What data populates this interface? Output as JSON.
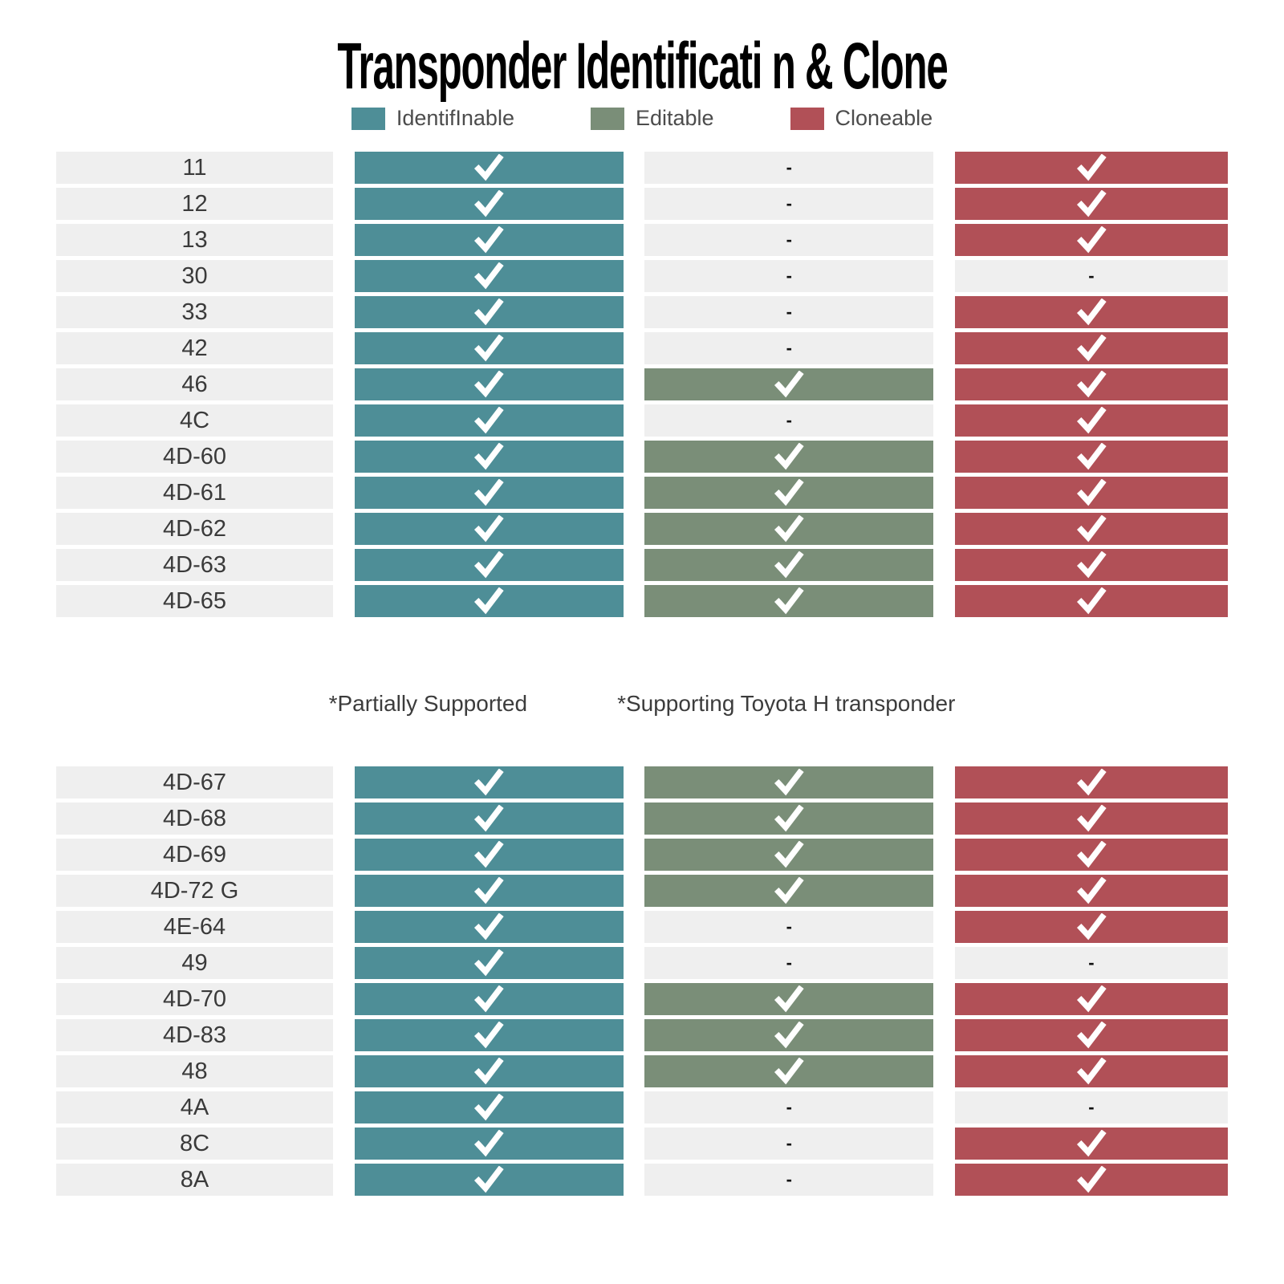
{
  "chart_data": {
    "type": "table",
    "title": "Transponder Identificati n & Clone",
    "legend": [
      {
        "key": "identifinable",
        "label": "IdentifInable",
        "color": "#4e8e97"
      },
      {
        "key": "editable",
        "label": "Editable",
        "color": "#7a8e78"
      },
      {
        "key": "cloneable",
        "label": "Cloneable",
        "color": "#b15057"
      }
    ],
    "empty_cell": {
      "color": "#efefef",
      "mark": "-"
    },
    "check_color": "#ffffff",
    "notes": [
      "*Partially Supported",
      "*Supporting Toyota H transponder"
    ],
    "tables": [
      {
        "rows": [
          {
            "label": "11",
            "cells": [
              1,
              0,
              1
            ]
          },
          {
            "label": "12",
            "cells": [
              1,
              0,
              1
            ]
          },
          {
            "label": "13",
            "cells": [
              1,
              0,
              1
            ]
          },
          {
            "label": "30",
            "cells": [
              1,
              0,
              0
            ]
          },
          {
            "label": "33",
            "cells": [
              1,
              0,
              1
            ]
          },
          {
            "label": "42",
            "cells": [
              1,
              0,
              1
            ]
          },
          {
            "label": "46",
            "cells": [
              1,
              1,
              1
            ]
          },
          {
            "label": "4C",
            "cells": [
              1,
              0,
              1
            ]
          },
          {
            "label": "4D-60",
            "cells": [
              1,
              1,
              1
            ]
          },
          {
            "label": "4D-61",
            "cells": [
              1,
              1,
              1
            ]
          },
          {
            "label": "4D-62",
            "cells": [
              1,
              1,
              1
            ]
          },
          {
            "label": "4D-63",
            "cells": [
              1,
              1,
              1
            ]
          },
          {
            "label": "4D-65",
            "cells": [
              1,
              1,
              1
            ]
          }
        ]
      },
      {
        "rows": [
          {
            "label": "4D-67",
            "cells": [
              1,
              1,
              1
            ]
          },
          {
            "label": "4D-68",
            "cells": [
              1,
              1,
              1
            ]
          },
          {
            "label": "4D-69",
            "cells": [
              1,
              1,
              1
            ]
          },
          {
            "label": "4D-72 G",
            "cells": [
              1,
              1,
              1
            ]
          },
          {
            "label": "4E-64",
            "cells": [
              1,
              0,
              1
            ]
          },
          {
            "label": "49",
            "cells": [
              1,
              0,
              0
            ]
          },
          {
            "label": "4D-70",
            "cells": [
              1,
              1,
              1
            ]
          },
          {
            "label": "4D-83",
            "cells": [
              1,
              1,
              1
            ]
          },
          {
            "label": "48",
            "cells": [
              1,
              1,
              1
            ]
          },
          {
            "label": "4A",
            "cells": [
              1,
              0,
              0
            ]
          },
          {
            "label": "8C",
            "cells": [
              1,
              0,
              1
            ]
          },
          {
            "label": "8A",
            "cells": [
              1,
              0,
              1
            ]
          }
        ]
      }
    ]
  }
}
